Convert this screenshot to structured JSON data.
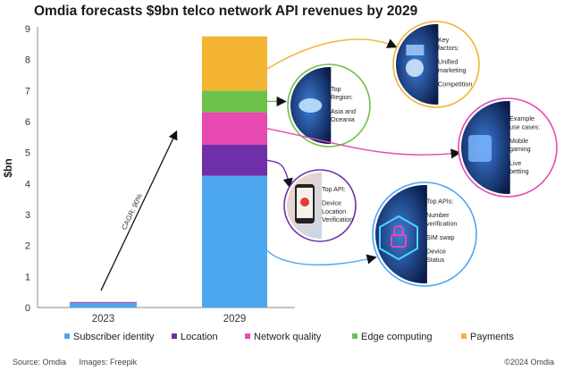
{
  "title": "Omdia forecasts $9bn telco network API revenues by 2029",
  "chart_data": {
    "type": "bar",
    "stacked": true,
    "categories": [
      "2023",
      "2029"
    ],
    "ylabel": "$bn",
    "xlabel": "",
    "ylim": [
      0,
      9
    ],
    "yticks": [
      "0",
      "1",
      "2",
      "3",
      "4",
      "5",
      "6",
      "7",
      "8",
      "9"
    ],
    "grid": false,
    "legend_position": "bottom",
    "series": [
      {
        "name": "Subscriber identity",
        "color": "#4da6f0",
        "values": [
          0.15,
          4.25
        ]
      },
      {
        "name": "Location",
        "color": "#6e2fa8",
        "values": [
          0.02,
          1.0
        ]
      },
      {
        "name": "Network quality",
        "color": "#e649b0",
        "values": [
          0.01,
          1.05
        ]
      },
      {
        "name": "Edge computing",
        "color": "#6cc24a",
        "values": [
          0.0,
          0.7
        ]
      },
      {
        "name": "Payments",
        "color": "#f2b431",
        "values": [
          0.0,
          1.75
        ]
      }
    ],
    "annotations": {
      "cagr_label": "CAGR: 90%"
    }
  },
  "callouts": [
    {
      "id": "top-region",
      "lines": [
        "Top",
        "Region:",
        "",
        "Asia and",
        "Oceania"
      ],
      "ring_color": "#6cc24a"
    },
    {
      "id": "key-factors",
      "lines": [
        "Key",
        "factors:",
        "",
        "Unified",
        "marketing",
        "",
        "Competition"
      ],
      "ring_color": "#f2b431"
    },
    {
      "id": "use-cases",
      "lines": [
        "Example",
        "use cases:",
        "",
        "Mobile",
        "gaming",
        "",
        "Live",
        "betting"
      ],
      "ring_color": "#e649b0"
    },
    {
      "id": "top-api",
      "lines": [
        "Top API:",
        "",
        "Device",
        "Location",
        "Verification"
      ],
      "ring_color": "#6e2fa8"
    },
    {
      "id": "top-apis",
      "lines": [
        "Top APIs:",
        "",
        "Number",
        "verification",
        "",
        "SIM swap",
        "",
        "Device",
        "Status"
      ],
      "ring_color": "#4da6f0"
    }
  ],
  "footer": {
    "source": "Source: Omdia",
    "images": "Images: Freepik",
    "copyright": "©2024 Omdia"
  }
}
